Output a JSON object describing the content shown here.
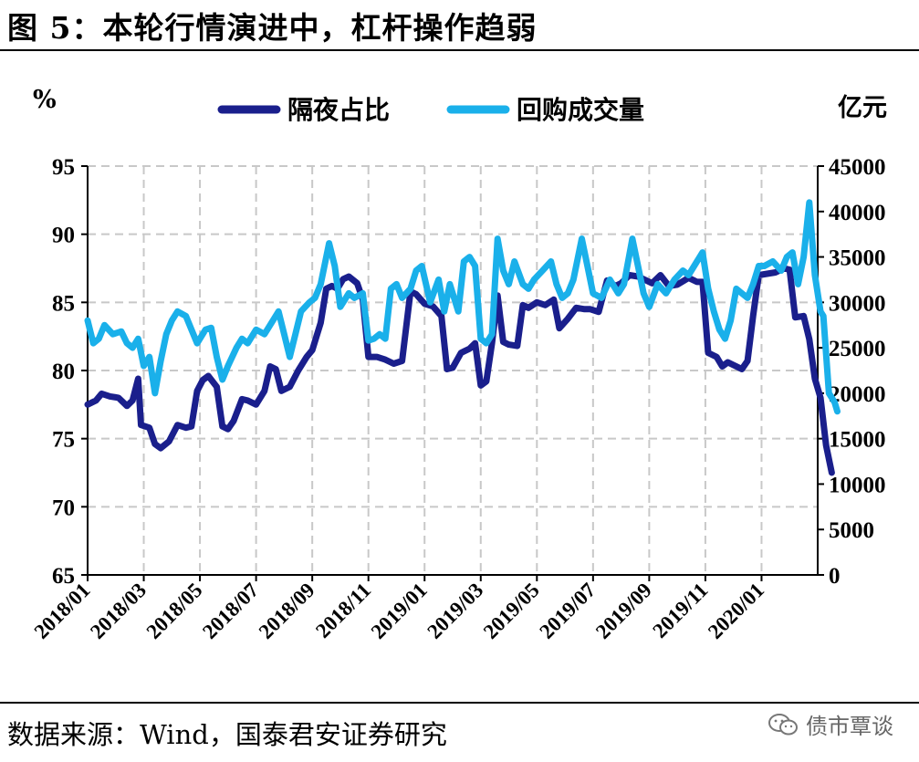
{
  "header": {
    "title": "图 5：本轮行情演进中，杠杆操作趋弱"
  },
  "footer": {
    "source": "数据来源：Wind，国泰君安证券研究",
    "watermark": "债市覃谈"
  },
  "colors": {
    "series1": "#1a1f8c",
    "series2": "#1ab0ea",
    "grid": "#c8c8c8"
  },
  "chart_data": {
    "type": "line",
    "y_left": {
      "unit": "%",
      "min": 65,
      "max": 95,
      "ticks": [
        "95",
        "90",
        "85",
        "80",
        "75",
        "70",
        "65"
      ]
    },
    "y_right": {
      "unit": "亿元",
      "min": 0,
      "max": 45000,
      "ticks": [
        "45000",
        "40000",
        "35000",
        "30000",
        "25000",
        "20000",
        "15000",
        "10000",
        "5000",
        "0"
      ]
    },
    "x_ticks": [
      "2018/01",
      "2018/03",
      "2018/05",
      "2018/07",
      "2018/09",
      "2018/11",
      "2019/01",
      "2019/03",
      "2019/05",
      "2019/07",
      "2019/09",
      "2019/11",
      "2020/01"
    ],
    "x_range_months": [
      0,
      26
    ],
    "legend_position": "top-center",
    "grid": true,
    "series": [
      {
        "name": "隔夜占比",
        "axis": "left",
        "points": [
          [
            0.0,
            77.5
          ],
          [
            0.3,
            77.8
          ],
          [
            0.5,
            78.3
          ],
          [
            0.8,
            78.1
          ],
          [
            1.1,
            78.0
          ],
          [
            1.4,
            77.4
          ],
          [
            1.6,
            77.8
          ],
          [
            1.8,
            79.4
          ],
          [
            1.9,
            76.0
          ],
          [
            2.2,
            75.8
          ],
          [
            2.4,
            74.6
          ],
          [
            2.6,
            74.3
          ],
          [
            2.9,
            74.8
          ],
          [
            3.2,
            76.0
          ],
          [
            3.5,
            75.8
          ],
          [
            3.7,
            75.9
          ],
          [
            3.9,
            78.5
          ],
          [
            4.1,
            79.3
          ],
          [
            4.3,
            79.6
          ],
          [
            4.6,
            78.8
          ],
          [
            4.8,
            75.9
          ],
          [
            5.0,
            75.7
          ],
          [
            5.2,
            76.3
          ],
          [
            5.5,
            77.9
          ],
          [
            5.7,
            77.8
          ],
          [
            6.0,
            77.5
          ],
          [
            6.3,
            78.5
          ],
          [
            6.5,
            80.3
          ],
          [
            6.7,
            80.1
          ],
          [
            6.9,
            78.5
          ],
          [
            7.2,
            78.8
          ],
          [
            7.5,
            80.0
          ],
          [
            7.8,
            81.0
          ],
          [
            8.0,
            81.5
          ],
          [
            8.3,
            83.5
          ],
          [
            8.5,
            86.0
          ],
          [
            8.7,
            86.2
          ],
          [
            8.9,
            86.0
          ],
          [
            9.1,
            86.7
          ],
          [
            9.3,
            86.9
          ],
          [
            9.6,
            86.4
          ],
          [
            9.8,
            85.2
          ],
          [
            10.0,
            81.0
          ],
          [
            10.3,
            81.0
          ],
          [
            10.6,
            80.8
          ],
          [
            10.9,
            80.5
          ],
          [
            11.2,
            80.7
          ],
          [
            11.5,
            85.8
          ],
          [
            11.7,
            85.6
          ],
          [
            12.0,
            84.9
          ],
          [
            12.3,
            84.7
          ],
          [
            12.6,
            84.0
          ],
          [
            12.8,
            80.1
          ],
          [
            13.0,
            80.2
          ],
          [
            13.3,
            81.3
          ],
          [
            13.6,
            81.6
          ],
          [
            13.8,
            82.0
          ],
          [
            14.0,
            78.9
          ],
          [
            14.2,
            79.2
          ],
          [
            14.4,
            82.0
          ],
          [
            14.6,
            85.5
          ],
          [
            14.8,
            82.1
          ],
          [
            15.0,
            81.9
          ],
          [
            15.3,
            81.8
          ],
          [
            15.5,
            84.8
          ],
          [
            15.7,
            84.6
          ],
          [
            16.0,
            85.0
          ],
          [
            16.3,
            84.8
          ],
          [
            16.6,
            85.2
          ],
          [
            16.8,
            83.1
          ],
          [
            17.1,
            83.8
          ],
          [
            17.4,
            84.6
          ],
          [
            17.7,
            84.5
          ],
          [
            17.9,
            84.5
          ],
          [
            18.2,
            84.3
          ],
          [
            18.5,
            86.6
          ],
          [
            18.8,
            86.2
          ],
          [
            19.0,
            86.4
          ],
          [
            19.3,
            87.0
          ],
          [
            19.6,
            86.9
          ],
          [
            19.9,
            86.6
          ],
          [
            20.1,
            86.4
          ],
          [
            20.4,
            87.0
          ],
          [
            20.7,
            86.2
          ],
          [
            21.0,
            86.3
          ],
          [
            21.4,
            86.8
          ],
          [
            21.7,
            86.5
          ],
          [
            21.9,
            86.5
          ],
          [
            22.1,
            81.3
          ],
          [
            22.4,
            81.0
          ],
          [
            22.6,
            80.3
          ],
          [
            22.8,
            80.6
          ],
          [
            23.1,
            80.3
          ],
          [
            23.3,
            80.1
          ],
          [
            23.5,
            80.7
          ],
          [
            23.7,
            84.0
          ],
          [
            23.9,
            87.0
          ],
          [
            24.2,
            87.1
          ],
          [
            24.5,
            87.2
          ],
          [
            24.8,
            87.5
          ],
          [
            25.0,
            87.4
          ],
          [
            25.2,
            83.9
          ],
          [
            25.5,
            84.0
          ],
          [
            25.7,
            82.3
          ],
          [
            25.9,
            79.4
          ],
          [
            26.1,
            78.0
          ],
          [
            26.3,
            74.5
          ],
          [
            26.5,
            72.5
          ]
        ]
      },
      {
        "name": "回购成交量",
        "axis": "right",
        "points": [
          [
            0.0,
            28000
          ],
          [
            0.2,
            25500
          ],
          [
            0.4,
            26000
          ],
          [
            0.6,
            27500
          ],
          [
            0.9,
            26500
          ],
          [
            1.2,
            26800
          ],
          [
            1.4,
            25500
          ],
          [
            1.6,
            25000
          ],
          [
            1.8,
            26000
          ],
          [
            2.0,
            23000
          ],
          [
            2.2,
            24000
          ],
          [
            2.4,
            20000
          ],
          [
            2.6,
            23500
          ],
          [
            2.8,
            26500
          ],
          [
            3.0,
            28000
          ],
          [
            3.2,
            29000
          ],
          [
            3.5,
            28500
          ],
          [
            3.7,
            27000
          ],
          [
            3.9,
            25500
          ],
          [
            4.2,
            27000
          ],
          [
            4.4,
            27200
          ],
          [
            4.6,
            24000
          ],
          [
            4.8,
            21500
          ],
          [
            5.0,
            23000
          ],
          [
            5.3,
            25000
          ],
          [
            5.5,
            26000
          ],
          [
            5.7,
            25500
          ],
          [
            6.0,
            27000
          ],
          [
            6.3,
            26500
          ],
          [
            6.5,
            27500
          ],
          [
            6.8,
            29000
          ],
          [
            7.0,
            26500
          ],
          [
            7.2,
            24000
          ],
          [
            7.4,
            26500
          ],
          [
            7.6,
            29000
          ],
          [
            7.9,
            30000
          ],
          [
            8.1,
            30500
          ],
          [
            8.3,
            32000
          ],
          [
            8.6,
            36500
          ],
          [
            8.8,
            34000
          ],
          [
            9.0,
            29500
          ],
          [
            9.3,
            31000
          ],
          [
            9.5,
            30500
          ],
          [
            9.8,
            31000
          ],
          [
            10.0,
            25800
          ],
          [
            10.2,
            26000
          ],
          [
            10.4,
            26500
          ],
          [
            10.6,
            26000
          ],
          [
            10.8,
            31500
          ],
          [
            11.0,
            32000
          ],
          [
            11.2,
            30500
          ],
          [
            11.5,
            31500
          ],
          [
            11.7,
            33500
          ],
          [
            11.9,
            34000
          ],
          [
            12.2,
            30000
          ],
          [
            12.5,
            32500
          ],
          [
            12.7,
            29000
          ],
          [
            12.9,
            32000
          ],
          [
            13.2,
            29000
          ],
          [
            13.4,
            34500
          ],
          [
            13.6,
            35000
          ],
          [
            13.8,
            34000
          ],
          [
            14.0,
            26000
          ],
          [
            14.2,
            25500
          ],
          [
            14.4,
            26500
          ],
          [
            14.6,
            37000
          ],
          [
            14.8,
            33500
          ],
          [
            15.0,
            32000
          ],
          [
            15.2,
            34500
          ],
          [
            15.5,
            32000
          ],
          [
            15.7,
            31500
          ],
          [
            15.9,
            32500
          ],
          [
            16.2,
            33500
          ],
          [
            16.5,
            34500
          ],
          [
            16.7,
            32000
          ],
          [
            16.9,
            30500
          ],
          [
            17.1,
            31000
          ],
          [
            17.3,
            32500
          ],
          [
            17.6,
            37000
          ],
          [
            17.8,
            34000
          ],
          [
            18.0,
            31000
          ],
          [
            18.3,
            30500
          ],
          [
            18.6,
            32500
          ],
          [
            18.9,
            31000
          ],
          [
            19.1,
            32000
          ],
          [
            19.4,
            37000
          ],
          [
            19.6,
            34000
          ],
          [
            19.8,
            31000
          ],
          [
            20.0,
            29500
          ],
          [
            20.3,
            32000
          ],
          [
            20.6,
            31000
          ],
          [
            20.9,
            32500
          ],
          [
            21.2,
            33500
          ],
          [
            21.4,
            33000
          ],
          [
            21.7,
            34500
          ],
          [
            21.9,
            35500
          ],
          [
            22.1,
            31500
          ],
          [
            22.3,
            29000
          ],
          [
            22.5,
            27000
          ],
          [
            22.7,
            26000
          ],
          [
            22.9,
            28000
          ],
          [
            23.1,
            31500
          ],
          [
            23.3,
            31000
          ],
          [
            23.5,
            30500
          ],
          [
            23.7,
            32000
          ],
          [
            23.9,
            34000
          ],
          [
            24.1,
            34000
          ],
          [
            24.4,
            34500
          ],
          [
            24.7,
            33500
          ],
          [
            24.9,
            35000
          ],
          [
            25.1,
            35500
          ],
          [
            25.3,
            32000
          ],
          [
            25.5,
            35000
          ],
          [
            25.7,
            41000
          ],
          [
            25.9,
            33000
          ],
          [
            26.1,
            29000
          ],
          [
            26.2,
            28500
          ],
          [
            26.4,
            20000
          ],
          [
            26.6,
            19000
          ],
          [
            26.7,
            18000
          ]
        ]
      }
    ]
  }
}
